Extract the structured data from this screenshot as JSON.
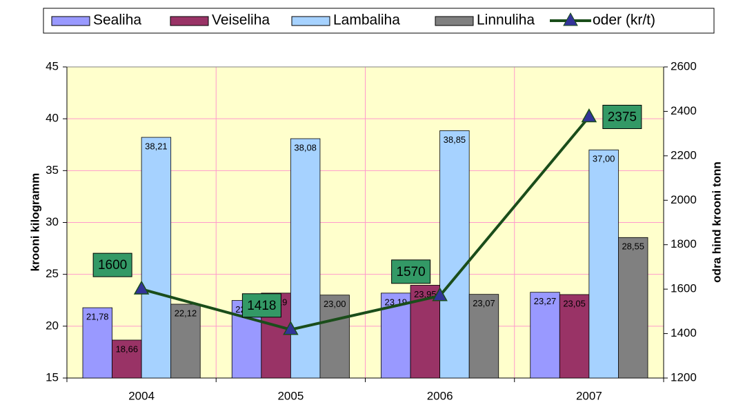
{
  "chart_data": {
    "type": "bar",
    "categories": [
      "2004",
      "2005",
      "2006",
      "2007"
    ],
    "series": [
      {
        "name": "Sealiha",
        "color": "#9999ff",
        "values": [
          21.78,
          22.48,
          23.19,
          23.27
        ],
        "value_labels": [
          "21,78",
          "22,48",
          "23,19",
          "23,27"
        ]
      },
      {
        "name": "Veiseliha",
        "color": "#993366",
        "values": [
          18.66,
          23.19,
          23.95,
          23.05
        ],
        "value_labels": [
          "18,66",
          "23,19",
          "23,95",
          "23,05"
        ]
      },
      {
        "name": "Lambaliha",
        "color": "#a6d2ff",
        "values": [
          38.21,
          38.08,
          38.85,
          37.0
        ],
        "value_labels": [
          "38,21",
          "38,08",
          "38,85",
          "37,00"
        ]
      },
      {
        "name": "Linnuliha",
        "color": "#808080",
        "values": [
          22.12,
          23.0,
          23.07,
          28.55
        ],
        "value_labels": [
          "22,12",
          "23,00",
          "23,07",
          "28,55"
        ]
      },
      {
        "name": "oder (kr/t)",
        "color": "#1a4d1a",
        "type": "line",
        "axis": "y2",
        "marker_color": "#333399",
        "label_color": "#339966",
        "values": [
          1600,
          1418,
          1570,
          2375
        ]
      }
    ],
    "y_label": "krooni kilogramm",
    "y2_label": "odra hind krooni tonn",
    "ylim": [
      15,
      45
    ],
    "yticks": [
      15,
      20,
      25,
      30,
      35,
      40,
      45
    ],
    "y2lim": [
      1200,
      2600
    ],
    "y2ticks": [
      1200,
      1400,
      1600,
      1800,
      2000,
      2200,
      2400,
      2600
    ],
    "grid": true,
    "plot_background": "#ffffcc",
    "grid_color": "#ff99cc",
    "legend": "top"
  }
}
